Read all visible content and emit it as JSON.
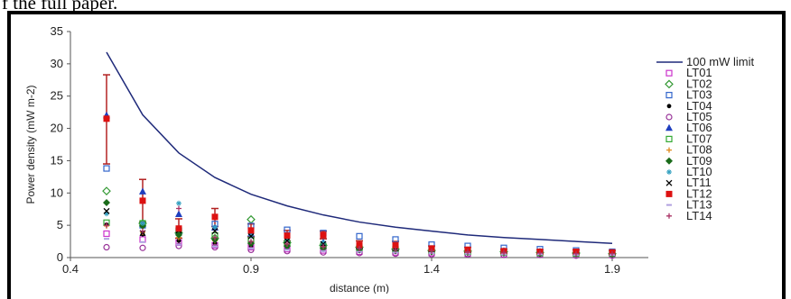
{
  "caption_fragment": "f the full paper.",
  "chart_data": {
    "type": "scatter",
    "title": "",
    "xlabel": "distance (m)",
    "ylabel": "Power density (mW m-2)",
    "xlim": [
      0.4,
      2.0
    ],
    "ylim": [
      0,
      35
    ],
    "xticks": [
      "0.4",
      "0.9",
      "1.4",
      "1.9"
    ],
    "yticks": [
      "0",
      "5",
      "10",
      "15",
      "20",
      "25",
      "30",
      "35"
    ],
    "grid": false,
    "legend_position": "right",
    "limit_line": {
      "name": "100 mW limit",
      "color": "#1f2a7a",
      "x": [
        0.5,
        0.6,
        0.7,
        0.8,
        0.9,
        1.0,
        1.1,
        1.2,
        1.3,
        1.4,
        1.5,
        1.6,
        1.7,
        1.8,
        1.9
      ],
      "y": [
        31.8,
        22.1,
        16.2,
        12.4,
        9.8,
        8.0,
        6.6,
        5.5,
        4.7,
        4.1,
        3.5,
        3.1,
        2.8,
        2.5,
        2.2
      ]
    },
    "error_bars": [
      {
        "x": 0.5,
        "y": 21.5,
        "low": 14.5,
        "high": 28.3
      },
      {
        "x": 0.6,
        "y": 8.8,
        "low": 5.5,
        "high": 12.1
      },
      {
        "x": 0.7,
        "y": 4.5,
        "low": 3.0,
        "high": 6.0
      },
      {
        "x": 0.8,
        "y": 6.3,
        "low": 4.8,
        "high": 7.6
      },
      {
        "x": 0.9,
        "y": 4.2,
        "low": 3.2,
        "high": 5.2
      },
      {
        "x": 1.0,
        "y": 3.4,
        "low": 2.6,
        "high": 4.2
      },
      {
        "x": 1.1,
        "y": 3.5,
        "low": 2.9,
        "high": 4.1
      },
      {
        "x": 1.2,
        "y": 2.0,
        "low": 1.4,
        "high": 2.6
      },
      {
        "x": 1.3,
        "y": 1.9,
        "low": 1.3,
        "high": 2.5
      },
      {
        "x": 1.4,
        "y": 1.4,
        "low": 1.0,
        "high": 1.8
      },
      {
        "x": 1.5,
        "y": 1.2,
        "low": 0.8,
        "high": 1.6
      },
      {
        "x": 1.6,
        "y": 1.0,
        "low": 0.7,
        "high": 1.3
      },
      {
        "x": 1.7,
        "y": 0.9,
        "low": 0.6,
        "high": 1.2
      },
      {
        "x": 1.8,
        "y": 0.9,
        "low": 0.6,
        "high": 1.2
      },
      {
        "x": 1.9,
        "y": 0.8,
        "low": 0.5,
        "high": 1.1
      }
    ],
    "series": [
      {
        "name": "LT01",
        "marker": "square-open",
        "color": "#cc33cc",
        "x": [
          0.5,
          0.6,
          0.7,
          0.8,
          0.9,
          1.0,
          1.1,
          1.2,
          1.3,
          1.4,
          1.5,
          1.6,
          1.7,
          1.8,
          1.9
        ],
        "y": [
          3.7,
          2.8,
          2.3,
          1.9,
          1.6,
          1.3,
          1.1,
          0.9,
          0.8,
          0.7,
          0.6,
          0.5,
          0.5,
          0.4,
          0.4
        ]
      },
      {
        "name": "LT02",
        "marker": "diamond-open",
        "color": "#339933",
        "x": [
          0.5,
          0.6,
          0.7,
          0.8,
          0.9,
          1.0,
          1.1,
          1.2,
          1.3,
          1.4,
          1.5,
          1.6,
          1.7,
          1.8,
          1.9
        ],
        "y": [
          10.3,
          5.3,
          3.8,
          3.0,
          5.9,
          2.3,
          1.9,
          1.6,
          1.3,
          1.1,
          1.0,
          0.9,
          0.8,
          0.7,
          0.6
        ]
      },
      {
        "name": "LT03",
        "marker": "square-open",
        "color": "#3366cc",
        "x": [
          0.5,
          0.6,
          0.7,
          0.8,
          0.9,
          1.0,
          1.1,
          1.2,
          1.3,
          1.4,
          1.5,
          1.6,
          1.7,
          1.8,
          1.9
        ],
        "y": [
          13.8,
          5.0,
          4.1,
          5.2,
          4.9,
          4.3,
          3.8,
          3.3,
          2.8,
          2.0,
          1.8,
          1.5,
          1.3,
          1.1,
          0.9
        ]
      },
      {
        "name": "LT04",
        "marker": "dot",
        "color": "#000000",
        "x": [
          0.5,
          0.6,
          0.7,
          0.8,
          0.9,
          1.0,
          1.1,
          1.2,
          1.3,
          1.4,
          1.5,
          1.6,
          1.7,
          1.8,
          1.9
        ],
        "y": [
          5.1,
          3.6,
          2.6,
          2.2,
          1.8,
          1.5,
          1.2,
          1.0,
          0.9,
          0.8,
          0.7,
          0.6,
          0.5,
          0.5,
          0.4
        ]
      },
      {
        "name": "LT05",
        "marker": "circle-open",
        "color": "#993399",
        "x": [
          0.5,
          0.6,
          0.7,
          0.8,
          0.9,
          1.0,
          1.1,
          1.2,
          1.3,
          1.4,
          1.5,
          1.6,
          1.7,
          1.8,
          1.9
        ],
        "y": [
          1.6,
          1.5,
          1.8,
          1.6,
          1.2,
          1.0,
          0.8,
          0.7,
          0.6,
          0.5,
          0.5,
          0.4,
          0.4,
          0.3,
          0.3
        ]
      },
      {
        "name": "LT06",
        "marker": "triangle",
        "color": "#1f3fbf",
        "x": [
          0.5,
          0.6,
          0.7,
          0.8,
          0.9,
          1.0,
          1.1,
          1.2,
          1.3,
          1.4,
          1.5,
          1.6,
          1.7,
          1.8,
          1.9
        ],
        "y": [
          22.0,
          10.2,
          6.7,
          4.6,
          3.7,
          2.9,
          2.3,
          1.9,
          1.6,
          1.3,
          1.1,
          1.0,
          0.9,
          0.8,
          0.7
        ]
      },
      {
        "name": "LT07",
        "marker": "square-open",
        "color": "#33aa33",
        "x": [
          0.5,
          0.6,
          0.7,
          0.8,
          0.9,
          1.0,
          1.1,
          1.2,
          1.3,
          1.4,
          1.5,
          1.6,
          1.7,
          1.8,
          1.9
        ],
        "y": [
          5.4,
          5.3,
          4.2,
          3.4,
          2.7,
          2.2,
          1.8,
          1.5,
          1.3,
          1.1,
          0.9,
          0.8,
          0.7,
          0.6,
          0.6
        ]
      },
      {
        "name": "LT08",
        "marker": "plus",
        "color": "#e08a1e",
        "x": [
          0.5,
          0.6,
          0.7,
          0.8,
          0.9,
          1.0,
          1.1,
          1.2,
          1.3,
          1.4,
          1.5,
          1.6,
          1.7,
          1.8,
          1.9
        ],
        "y": [
          4.9,
          3.9,
          3.1,
          2.6,
          2.1,
          1.8,
          1.5,
          1.2,
          1.1,
          0.9,
          0.8,
          0.7,
          0.6,
          0.6,
          0.5
        ]
      },
      {
        "name": "LT09",
        "marker": "diamond",
        "color": "#1a6b1a",
        "x": [
          0.5,
          0.6,
          0.7,
          0.8,
          0.9,
          1.0,
          1.1,
          1.2,
          1.3,
          1.4,
          1.5,
          1.6,
          1.7,
          1.8,
          1.9
        ],
        "y": [
          8.5,
          4.9,
          3.5,
          2.8,
          2.2,
          1.8,
          1.5,
          1.3,
          1.1,
          0.9,
          0.8,
          0.7,
          0.6,
          0.6,
          0.5
        ]
      },
      {
        "name": "LT10",
        "marker": "star",
        "color": "#33a0c0",
        "x": [
          0.5,
          0.6,
          0.7,
          0.8,
          0.9,
          1.0,
          1.1,
          1.2,
          1.3,
          1.4,
          1.5,
          1.6,
          1.7,
          1.8,
          1.9
        ],
        "y": [
          6.8,
          5.3,
          8.4,
          4.7,
          3.4,
          2.8,
          2.3,
          1.9,
          1.6,
          1.4,
          1.2,
          1.0,
          0.9,
          0.8,
          0.7
        ]
      },
      {
        "name": "LT11",
        "marker": "x",
        "color": "#000000",
        "x": [
          0.5,
          0.6,
          0.7,
          0.8,
          0.9,
          1.0,
          1.1,
          1.2,
          1.3,
          1.4,
          1.5,
          1.6,
          1.7,
          1.8,
          1.9
        ],
        "y": [
          7.2,
          3.8,
          4.2,
          4.1,
          3.3,
          2.6,
          2.1,
          1.8,
          1.5,
          1.3,
          1.1,
          1.0,
          0.9,
          0.8,
          0.7
        ]
      },
      {
        "name": "LT12",
        "marker": "square",
        "color": "#dd1111",
        "x": [
          0.5,
          0.6,
          0.7,
          0.8,
          0.9,
          1.0,
          1.1,
          1.2,
          1.3,
          1.4,
          1.5,
          1.6,
          1.7,
          1.8,
          1.9
        ],
        "y": [
          21.5,
          8.8,
          4.5,
          6.3,
          4.2,
          3.4,
          3.5,
          2.0,
          1.9,
          1.4,
          1.2,
          1.0,
          0.9,
          0.9,
          0.8
        ]
      },
      {
        "name": "LT13",
        "marker": "dash",
        "color": "#b0a0e0",
        "x": [
          0.5,
          0.6,
          0.7,
          0.8,
          0.9,
          1.0,
          1.1,
          1.2,
          1.3,
          1.4,
          1.5,
          1.6,
          1.7,
          1.8,
          1.9
        ],
        "y": [
          2.9,
          2.4,
          2.0,
          1.7,
          1.4,
          1.2,
          1.0,
          0.9,
          0.8,
          0.7,
          0.6,
          0.5,
          0.5,
          0.4,
          0.4
        ]
      },
      {
        "name": "LT14",
        "marker": "plus",
        "color": "#aa3366",
        "x": [
          0.5,
          0.6,
          0.7,
          0.8,
          0.9,
          1.0,
          1.1,
          1.2,
          1.3,
          1.4,
          1.5,
          1.6,
          1.7,
          1.8,
          1.9
        ],
        "y": [
          5.0,
          4.1,
          7.6,
          3.1,
          2.5,
          2.1,
          1.7,
          1.4,
          1.2,
          1.0,
          0.9,
          0.8,
          0.7,
          0.6,
          0.6
        ]
      }
    ]
  }
}
